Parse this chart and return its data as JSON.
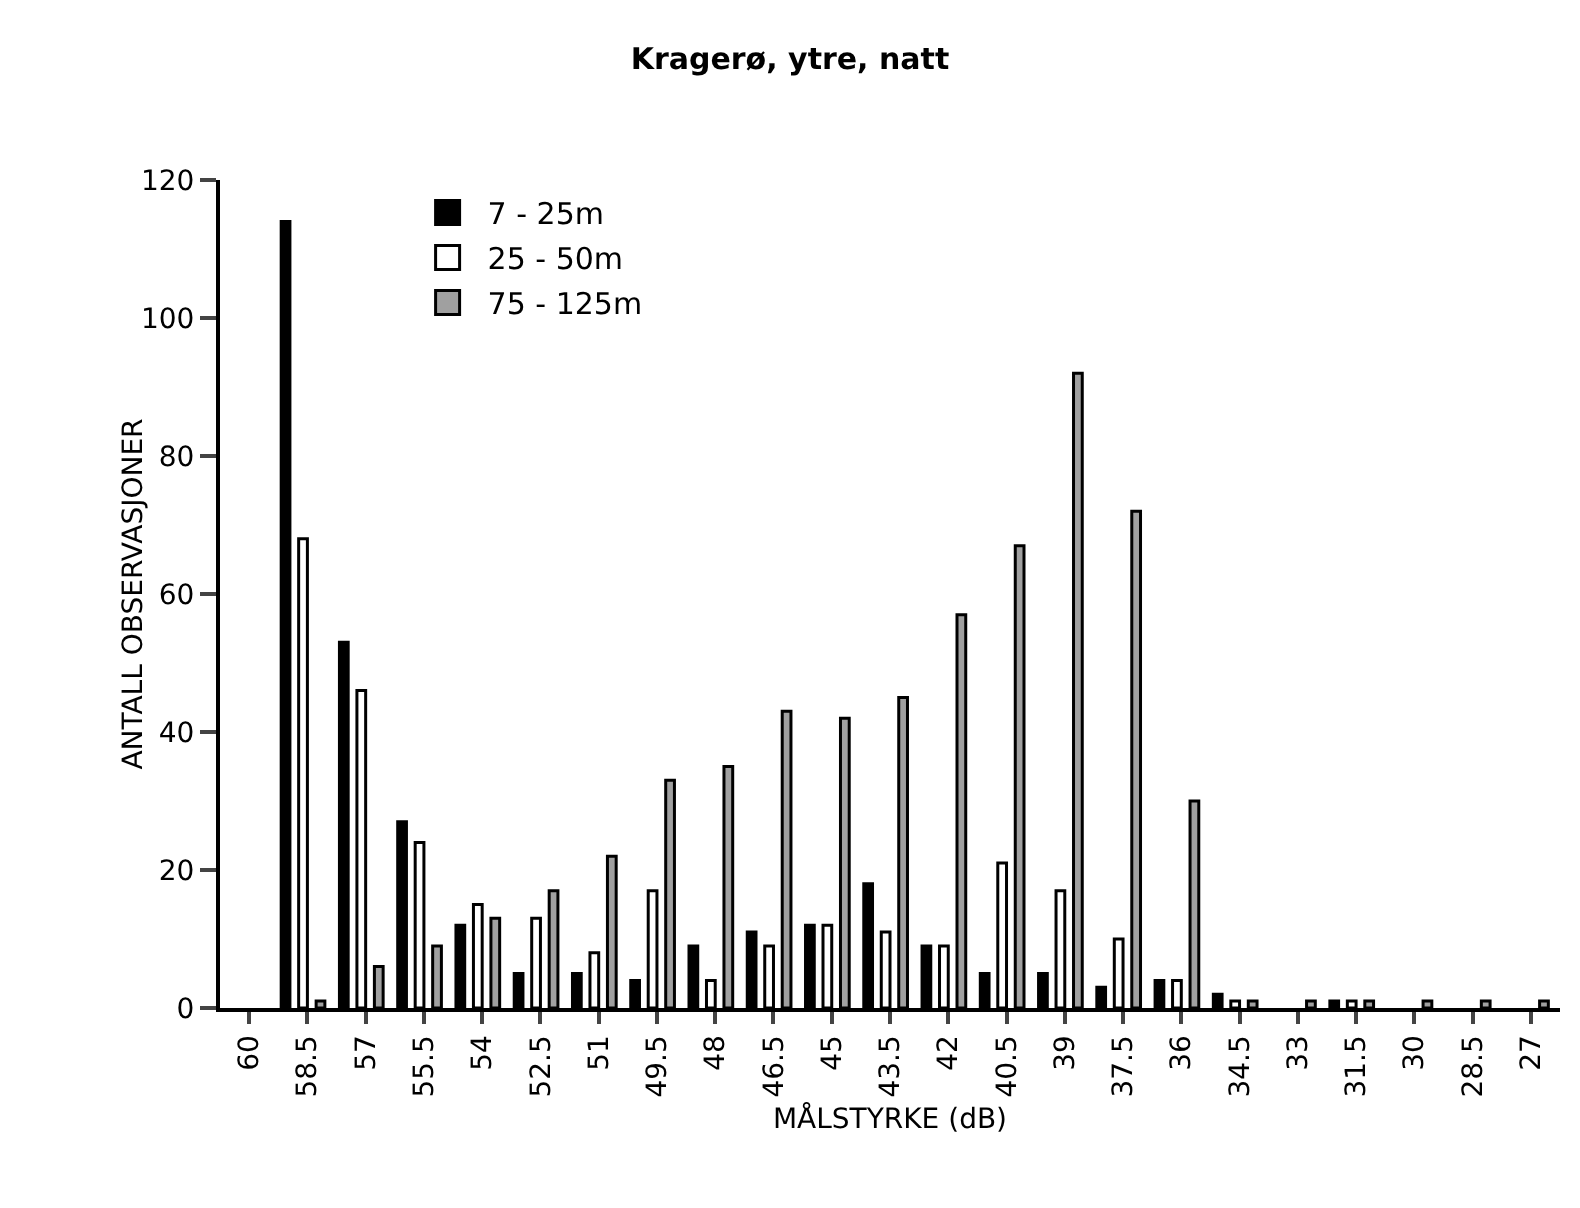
{
  "chart_data": {
    "type": "bar",
    "title": "Kragerø, ytre, natt",
    "xlabel": "MÅLSTYRKE (dB)",
    "ylabel": "ANTALL OBSERVASJONER",
    "categories": [
      "60",
      "58.5",
      "57",
      "55.5",
      "54",
      "52.5",
      "51",
      "49.5",
      "48",
      "46.5",
      "45",
      "43.5",
      "42",
      "40.5",
      "39",
      "37.5",
      "36",
      "34.5",
      "33",
      "31.5",
      "30",
      "28.5",
      "27"
    ],
    "series": [
      {
        "name": "7 - 25m",
        "color": "#000000",
        "values": [
          0,
          114,
          53,
          27,
          12,
          5,
          5,
          4,
          9,
          11,
          12,
          18,
          9,
          5,
          5,
          3,
          4,
          2,
          0,
          1,
          0,
          0,
          0
        ]
      },
      {
        "name": "25 - 50m",
        "color": "#ffffff",
        "values": [
          0,
          68,
          46,
          24,
          15,
          13,
          8,
          17,
          4,
          9,
          12,
          11,
          9,
          21,
          17,
          10,
          4,
          1,
          0,
          1,
          0,
          0,
          0
        ]
      },
      {
        "name": "75 - 125m",
        "color": "#a0a0a0",
        "values": [
          0,
          1,
          6,
          9,
          13,
          17,
          22,
          33,
          35,
          43,
          42,
          45,
          57,
          67,
          92,
          72,
          30,
          1,
          1,
          1,
          1,
          1,
          1
        ]
      }
    ],
    "ylim": [
      0,
      120
    ],
    "yticks": [
      0,
      20,
      40,
      60,
      80,
      100,
      120
    ],
    "grid": false,
    "legend": "top left"
  }
}
